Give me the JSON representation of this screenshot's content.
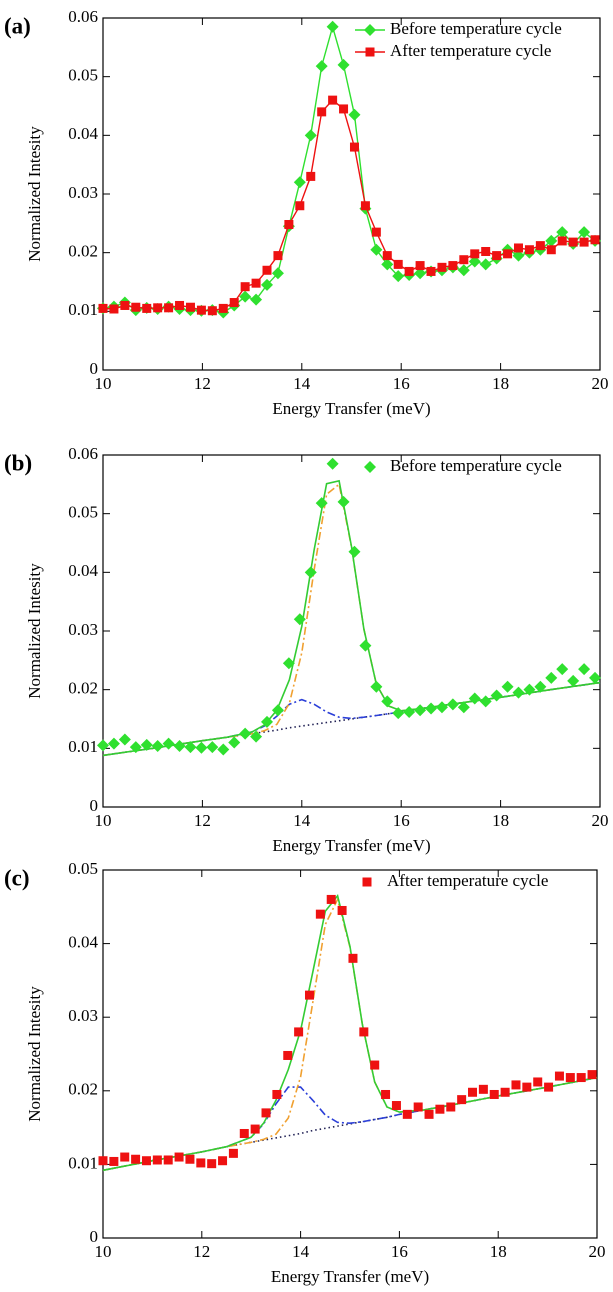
{
  "chart_data": [
    {
      "type": "scatter",
      "panel_label": "(a)",
      "xlabel": "Energy Transfer (meV)",
      "ylabel": "Normalized Intesity",
      "xlim": [
        10,
        20
      ],
      "xticks": [
        10,
        12,
        14,
        16,
        18,
        20
      ],
      "ylim": [
        0,
        0.06
      ],
      "yticks": [
        0,
        0.01,
        0.02,
        0.03,
        0.04,
        0.05,
        0.06
      ],
      "legend": "upper right",
      "x": [
        10.0,
        10.22,
        10.44,
        10.66,
        10.88,
        11.1,
        11.32,
        11.54,
        11.76,
        11.98,
        12.2,
        12.42,
        12.64,
        12.86,
        13.08,
        13.3,
        13.52,
        13.74,
        13.96,
        14.18,
        14.4,
        14.62,
        14.84,
        15.06,
        15.28,
        15.5,
        15.72,
        15.94,
        16.16,
        16.38,
        16.6,
        16.82,
        17.04,
        17.26,
        17.48,
        17.7,
        17.92,
        18.14,
        18.36,
        18.58,
        18.8,
        19.02,
        19.24,
        19.46,
        19.68,
        19.9
      ],
      "series": [
        {
          "name": "Before temperature cycle",
          "color": "#2fe02f",
          "marker": "diamond",
          "line": true,
          "values": [
            0.0105,
            0.0108,
            0.0115,
            0.0102,
            0.0106,
            0.0104,
            0.0108,
            0.0104,
            0.0102,
            0.0101,
            0.0102,
            0.0098,
            0.011,
            0.0125,
            0.012,
            0.0145,
            0.0165,
            0.0245,
            0.032,
            0.04,
            0.0518,
            0.0585,
            0.052,
            0.0435,
            0.0275,
            0.0205,
            0.018,
            0.016,
            0.0162,
            0.0165,
            0.0168,
            0.017,
            0.0175,
            0.017,
            0.0185,
            0.018,
            0.019,
            0.0205,
            0.0195,
            0.02,
            0.0205,
            0.022,
            0.0235,
            0.0215,
            0.0235,
            0.022
          ]
        },
        {
          "name": "After temperature cycle",
          "color": "#ee1111",
          "marker": "square",
          "line": true,
          "values": [
            0.0105,
            0.0104,
            0.011,
            0.0107,
            0.0105,
            0.0106,
            0.0106,
            0.011,
            0.0107,
            0.0102,
            0.0101,
            0.0105,
            0.0115,
            0.0142,
            0.0148,
            0.017,
            0.0195,
            0.0248,
            0.028,
            0.033,
            0.044,
            0.046,
            0.0445,
            0.038,
            0.028,
            0.0235,
            0.0195,
            0.018,
            0.0168,
            0.0178,
            0.0168,
            0.0175,
            0.0178,
            0.0188,
            0.0198,
            0.0202,
            0.0195,
            0.0198,
            0.0208,
            0.0205,
            0.0212,
            0.0205,
            0.022,
            0.0218,
            0.0218,
            0.0222
          ]
        }
      ]
    },
    {
      "type": "scatter",
      "panel_label": "(b)",
      "xlabel": "Energy Transfer (meV)",
      "ylabel": "Normalized Intesity",
      "xlim": [
        10,
        20
      ],
      "xticks": [
        10,
        12,
        14,
        16,
        18,
        20
      ],
      "ylim": [
        0,
        0.06
      ],
      "yticks": [
        0,
        0.01,
        0.02,
        0.03,
        0.04,
        0.05,
        0.06
      ],
      "legend": "upper right",
      "x": [
        10.0,
        10.22,
        10.44,
        10.66,
        10.88,
        11.1,
        11.32,
        11.54,
        11.76,
        11.98,
        12.2,
        12.42,
        12.64,
        12.86,
        13.08,
        13.3,
        13.52,
        13.74,
        13.96,
        14.18,
        14.4,
        14.62,
        14.84,
        15.06,
        15.28,
        15.5,
        15.72,
        15.94,
        16.16,
        16.38,
        16.6,
        16.82,
        17.04,
        17.26,
        17.48,
        17.7,
        17.92,
        18.14,
        18.36,
        18.58,
        18.8,
        19.02,
        19.24,
        19.46,
        19.68,
        19.9
      ],
      "series": [
        {
          "color": "#222255",
          "style": "dotted",
          "x": [
            10,
            11,
            12,
            12.5,
            13,
            13.25,
            13.5,
            13.75,
            14,
            14.25,
            14.5,
            14.75,
            15,
            15.25,
            15.5,
            15.75,
            16,
            16.5,
            17,
            18,
            19,
            20
          ],
          "values": [
            0.0088,
            0.01,
            0.0113,
            0.0119,
            0.0125,
            0.0128,
            0.0131,
            0.0135,
            0.0138,
            0.0141,
            0.0144,
            0.0147,
            0.015,
            0.0153,
            0.0156,
            0.0159,
            0.0162,
            0.0169,
            0.0175,
            0.0187,
            0.02,
            0.0212
          ]
        },
        {
          "color": "#2b3fd8",
          "style": "dash-dot",
          "x": [
            10,
            11,
            12,
            12.5,
            13,
            13.25,
            13.5,
            13.75,
            14,
            14.25,
            14.5,
            14.75,
            15,
            15.25,
            15.5,
            15.75,
            16,
            16.5,
            17,
            18,
            19,
            20
          ],
          "values": [
            0.0088,
            0.01,
            0.0113,
            0.0119,
            0.0128,
            0.0138,
            0.0155,
            0.0175,
            0.0183,
            0.0175,
            0.0162,
            0.0153,
            0.0151,
            0.0153,
            0.0156,
            0.0159,
            0.0162,
            0.0169,
            0.0175,
            0.0187,
            0.02,
            0.0212
          ]
        },
        {
          "color": "#f0a030",
          "style": "dash-dot",
          "x": [
            10,
            11,
            12,
            12.5,
            13,
            13.25,
            13.5,
            13.75,
            14,
            14.25,
            14.5,
            14.75,
            15,
            15.25,
            15.5,
            15.75,
            16,
            16.5,
            17,
            18,
            19,
            20
          ],
          "values": [
            0.0088,
            0.01,
            0.0113,
            0.0119,
            0.0125,
            0.013,
            0.0141,
            0.0177,
            0.0263,
            0.0405,
            0.0533,
            0.055,
            0.0443,
            0.0303,
            0.0209,
            0.0172,
            0.0164,
            0.0169,
            0.0175,
            0.0187,
            0.02,
            0.0212
          ]
        },
        {
          "color": "#33cc33",
          "style": "solid",
          "x": [
            10,
            11,
            12,
            12.5,
            13,
            13.25,
            13.5,
            13.75,
            14,
            14.25,
            14.5,
            14.75,
            15,
            15.25,
            15.5,
            15.75,
            16,
            16.5,
            17,
            18,
            19,
            20
          ],
          "values": [
            0.0088,
            0.01,
            0.0113,
            0.0119,
            0.0128,
            0.014,
            0.0165,
            0.0217,
            0.0308,
            0.0439,
            0.0551,
            0.0556,
            0.0444,
            0.0303,
            0.0209,
            0.0172,
            0.0164,
            0.0169,
            0.0175,
            0.0187,
            0.02,
            0.0212
          ]
        },
        {
          "name": "Before temperature cycle",
          "color": "#2fe02f",
          "marker": "diamond",
          "values": [
            0.0105,
            0.0108,
            0.0115,
            0.0102,
            0.0106,
            0.0104,
            0.0108,
            0.0104,
            0.0102,
            0.0101,
            0.0102,
            0.0098,
            0.011,
            0.0125,
            0.012,
            0.0145,
            0.0165,
            0.0245,
            0.032,
            0.04,
            0.0518,
            0.0585,
            0.052,
            0.0435,
            0.0275,
            0.0205,
            0.018,
            0.016,
            0.0162,
            0.0165,
            0.0168,
            0.017,
            0.0175,
            0.017,
            0.0185,
            0.018,
            0.019,
            0.0205,
            0.0195,
            0.02,
            0.0205,
            0.022,
            0.0235,
            0.0215,
            0.0235,
            0.022
          ]
        }
      ]
    },
    {
      "type": "scatter",
      "panel_label": "(c)",
      "xlabel": "Energy Transfer (meV)",
      "ylabel": "Normalized Intesity",
      "xlim": [
        10,
        20
      ],
      "xticks": [
        10,
        12,
        14,
        16,
        18,
        20
      ],
      "ylim": [
        0,
        0.05
      ],
      "yticks": [
        0,
        0.01,
        0.02,
        0.03,
        0.04,
        0.05
      ],
      "legend": "upper right",
      "x": [
        10.0,
        10.22,
        10.44,
        10.66,
        10.88,
        11.1,
        11.32,
        11.54,
        11.76,
        11.98,
        12.2,
        12.42,
        12.64,
        12.86,
        13.08,
        13.3,
        13.52,
        13.74,
        13.96,
        14.18,
        14.4,
        14.62,
        14.84,
        15.06,
        15.28,
        15.5,
        15.72,
        15.94,
        16.16,
        16.38,
        16.6,
        16.82,
        17.04,
        17.26,
        17.48,
        17.7,
        17.92,
        18.14,
        18.36,
        18.58,
        18.8,
        19.02,
        19.24,
        19.46,
        19.68,
        19.9
      ],
      "series": [
        {
          "color": "#222255",
          "style": "dotted",
          "x": [
            10,
            11,
            12,
            12.5,
            13,
            13.25,
            13.5,
            13.75,
            14,
            14.25,
            14.5,
            14.75,
            15,
            15.25,
            15.5,
            15.75,
            16,
            16.5,
            17,
            18,
            19,
            20
          ],
          "values": [
            0.0092,
            0.0105,
            0.0117,
            0.0124,
            0.013,
            0.0133,
            0.0136,
            0.0139,
            0.0142,
            0.0146,
            0.0149,
            0.0152,
            0.0155,
            0.0158,
            0.0161,
            0.0164,
            0.0168,
            0.0174,
            0.018,
            0.0193,
            0.0205,
            0.0218
          ]
        },
        {
          "color": "#2b3fd8",
          "style": "dash-dot",
          "x": [
            10,
            11,
            12,
            12.5,
            13,
            13.25,
            13.5,
            13.75,
            14,
            14.25,
            14.5,
            14.75,
            15,
            15.25,
            15.5,
            15.75,
            16,
            16.5,
            17,
            18,
            19,
            20
          ],
          "values": [
            0.0092,
            0.0105,
            0.0117,
            0.0124,
            0.0137,
            0.0155,
            0.0182,
            0.0205,
            0.0205,
            0.0187,
            0.0167,
            0.0157,
            0.0156,
            0.0158,
            0.0161,
            0.0164,
            0.0168,
            0.0174,
            0.018,
            0.0193,
            0.0205,
            0.0218
          ]
        },
        {
          "color": "#f0a030",
          "style": "dash-dot",
          "x": [
            10,
            11,
            12,
            12.5,
            13,
            13.25,
            13.5,
            13.75,
            14,
            14.25,
            14.5,
            14.75,
            15,
            15.25,
            15.5,
            15.75,
            16,
            16.5,
            17,
            18,
            19,
            20
          ],
          "values": [
            0.0092,
            0.0105,
            0.0117,
            0.0124,
            0.013,
            0.0134,
            0.0141,
            0.0163,
            0.0219,
            0.0321,
            0.0426,
            0.046,
            0.0395,
            0.029,
            0.0212,
            0.0178,
            0.0171,
            0.0174,
            0.018,
            0.0193,
            0.0205,
            0.0218
          ]
        },
        {
          "color": "#33cc33",
          "style": "solid",
          "x": [
            10,
            11,
            12,
            12.5,
            13,
            13.25,
            13.5,
            13.75,
            14,
            14.25,
            14.5,
            14.75,
            15,
            15.25,
            15.5,
            15.75,
            16,
            16.5,
            17,
            18,
            19,
            20
          ],
          "values": [
            0.0092,
            0.0105,
            0.0117,
            0.0124,
            0.0137,
            0.0156,
            0.0187,
            0.0229,
            0.0282,
            0.0362,
            0.0444,
            0.0465,
            0.0396,
            0.029,
            0.0212,
            0.0178,
            0.0171,
            0.0174,
            0.018,
            0.0193,
            0.0205,
            0.0218
          ]
        },
        {
          "name": "After temperature cycle",
          "color": "#ee1111",
          "marker": "square",
          "values": [
            0.0105,
            0.0104,
            0.011,
            0.0107,
            0.0105,
            0.0106,
            0.0106,
            0.011,
            0.0107,
            0.0102,
            0.0101,
            0.0105,
            0.0115,
            0.0142,
            0.0148,
            0.017,
            0.0195,
            0.0248,
            0.028,
            0.033,
            0.044,
            0.046,
            0.0445,
            0.038,
            0.028,
            0.0235,
            0.0195,
            0.018,
            0.0168,
            0.0178,
            0.0168,
            0.0175,
            0.0178,
            0.0188,
            0.0198,
            0.0202,
            0.0195,
            0.0198,
            0.0208,
            0.0205,
            0.0212,
            0.0205,
            0.022,
            0.0218,
            0.0218,
            0.0222
          ]
        }
      ]
    }
  ]
}
